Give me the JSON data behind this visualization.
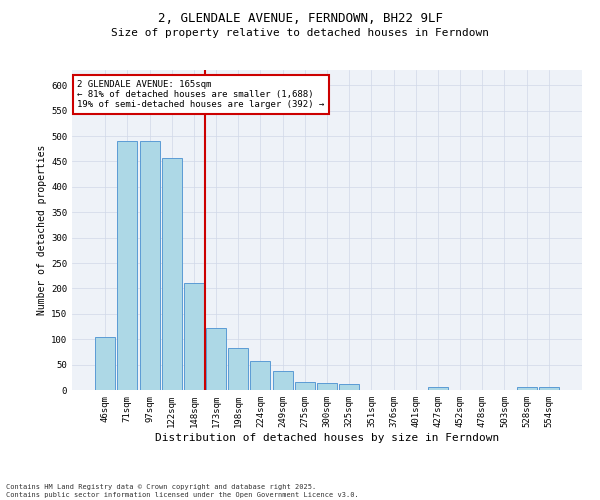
{
  "title_line1": "2, GLENDALE AVENUE, FERNDOWN, BH22 9LF",
  "title_line2": "Size of property relative to detached houses in Ferndown",
  "xlabel": "Distribution of detached houses by size in Ferndown",
  "ylabel": "Number of detached properties",
  "categories": [
    "46sqm",
    "71sqm",
    "97sqm",
    "122sqm",
    "148sqm",
    "173sqm",
    "198sqm",
    "224sqm",
    "249sqm",
    "275sqm",
    "300sqm",
    "325sqm",
    "351sqm",
    "376sqm",
    "401sqm",
    "427sqm",
    "452sqm",
    "478sqm",
    "503sqm",
    "528sqm",
    "554sqm"
  ],
  "values": [
    105,
    490,
    490,
    457,
    210,
    122,
    82,
    58,
    38,
    15,
    13,
    12,
    0,
    0,
    0,
    6,
    0,
    0,
    0,
    6,
    6
  ],
  "bar_color": "#add8e6",
  "bar_edge_color": "#5b9bd5",
  "vline_x": 4.5,
  "vline_color": "#cc0000",
  "annotation_text": "2 GLENDALE AVENUE: 165sqm\n← 81% of detached houses are smaller (1,688)\n19% of semi-detached houses are larger (392) →",
  "annotation_box_color": "#cc0000",
  "ylim": [
    0,
    630
  ],
  "yticks": [
    0,
    50,
    100,
    150,
    200,
    250,
    300,
    350,
    400,
    450,
    500,
    550,
    600
  ],
  "grid_color": "#d0d8e8",
  "bg_color": "#eef2f8",
  "footer": "Contains HM Land Registry data © Crown copyright and database right 2025.\nContains public sector information licensed under the Open Government Licence v3.0.",
  "title_fontsize": 9,
  "subtitle_fontsize": 8,
  "tick_fontsize": 6.5,
  "ylabel_fontsize": 7,
  "xlabel_fontsize": 8,
  "annotation_fontsize": 6.5,
  "footer_fontsize": 5
}
